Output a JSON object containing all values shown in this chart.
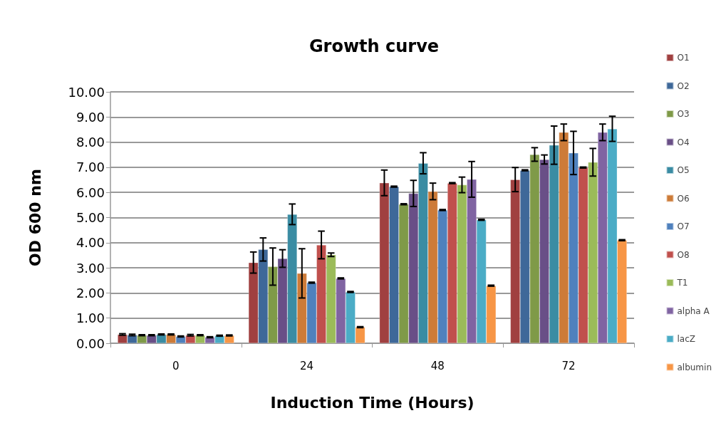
{
  "chart_data": {
    "type": "bar",
    "title": "Growth curve",
    "xlabel": "Induction Time (Hours)",
    "ylabel": "OD 600 nm",
    "categories": [
      "0",
      "24",
      "48",
      "72"
    ],
    "ylim": [
      0,
      10
    ],
    "yticks": [
      {
        "value": 0,
        "label": "0.00"
      },
      {
        "value": 1,
        "label": "1.00"
      },
      {
        "value": 2,
        "label": "2.00"
      },
      {
        "value": 3,
        "label": "3.00"
      },
      {
        "value": 4,
        "label": "4.00"
      },
      {
        "value": 5,
        "label": "5.00"
      },
      {
        "value": 6,
        "label": "6.00"
      },
      {
        "value": 7,
        "label": "7.00"
      },
      {
        "value": 8,
        "label": "8.00"
      },
      {
        "value": 9,
        "label": "9.00"
      },
      {
        "value": 10,
        "label": "10.00"
      }
    ],
    "grid": "y",
    "legend": "right",
    "series": [
      {
        "name": "O1",
        "color": "#a04040",
        "values": [
          0.35,
          3.21,
          6.38,
          6.51
        ],
        "errors": [
          0.03,
          0.42,
          0.51,
          0.48
        ]
      },
      {
        "name": "O2",
        "color": "#3e6899",
        "values": [
          0.33,
          3.73,
          6.23,
          6.88
        ],
        "errors": [
          0.03,
          0.46,
          0.02,
          0.02
        ]
      },
      {
        "name": "O3",
        "color": "#7f9a48",
        "values": [
          0.32,
          3.05,
          5.53,
          7.51
        ],
        "errors": [
          0.02,
          0.74,
          0.02,
          0.27
        ]
      },
      {
        "name": "O4",
        "color": "#694f87",
        "values": [
          0.32,
          3.37,
          5.96,
          7.31
        ],
        "errors": [
          0.02,
          0.35,
          0.52,
          0.18
        ]
      },
      {
        "name": "O5",
        "color": "#3a8ca3",
        "values": [
          0.35,
          5.13,
          7.16,
          7.88
        ],
        "errors": [
          0.02,
          0.41,
          0.42,
          0.76
        ]
      },
      {
        "name": "O6",
        "color": "#cd7b38",
        "values": [
          0.35,
          2.78,
          6.04,
          8.39
        ],
        "errors": [
          0.02,
          0.98,
          0.33,
          0.33
        ]
      },
      {
        "name": "O7",
        "color": "#4f81bd",
        "values": [
          0.27,
          2.41,
          5.3,
          7.57
        ],
        "errors": [
          0.02,
          0.02,
          0.02,
          0.86
        ]
      },
      {
        "name": "O8",
        "color": "#c0504d",
        "values": [
          0.32,
          3.91,
          6.37,
          6.99
        ],
        "errors": [
          0.03,
          0.55,
          0.02,
          0.02
        ]
      },
      {
        "name": "T1",
        "color": "#9bbb59",
        "values": [
          0.32,
          3.52,
          6.3,
          7.2
        ],
        "errors": [
          0.02,
          0.07,
          0.31,
          0.55
        ]
      },
      {
        "name": "alpha A",
        "color": "#8064a2",
        "values": [
          0.24,
          2.58,
          6.52,
          8.39
        ],
        "errors": [
          0.02,
          0.02,
          0.71,
          0.33
        ]
      },
      {
        "name": "lacZ",
        "color": "#4bacc6",
        "values": [
          0.3,
          2.04,
          4.91,
          8.53
        ],
        "errors": [
          0.02,
          0.02,
          0.02,
          0.5
        ]
      },
      {
        "name": "albumin",
        "color": "#f79646",
        "values": [
          0.31,
          0.64,
          2.29,
          4.1
        ],
        "errors": [
          0.02,
          0.02,
          0.02,
          0.02
        ]
      }
    ]
  }
}
